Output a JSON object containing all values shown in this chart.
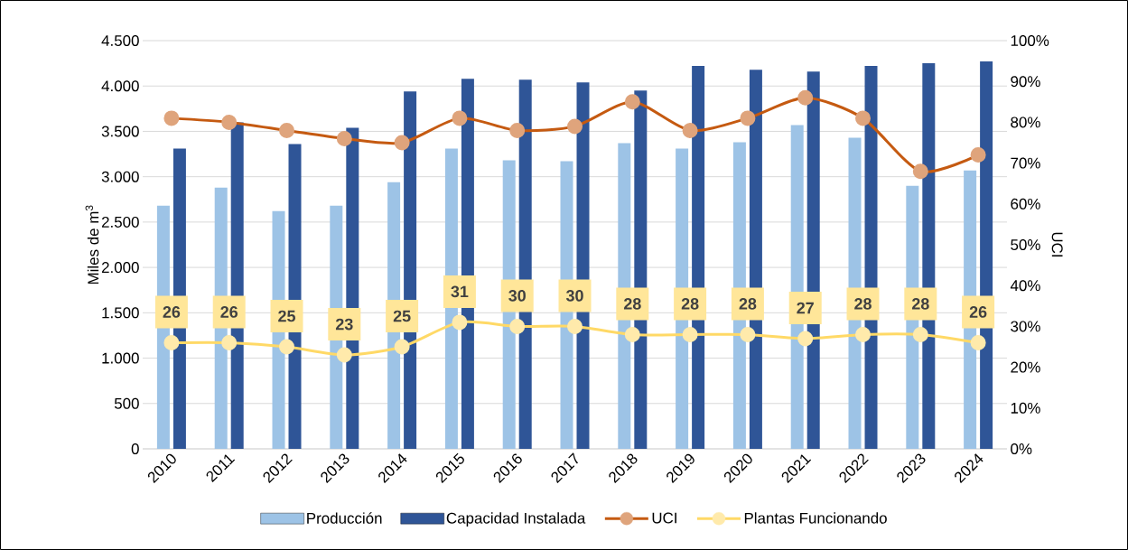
{
  "chart_data": {
    "type": "bar",
    "categories": [
      "2010",
      "2011",
      "2012",
      "2013",
      "2014",
      "2015",
      "2016",
      "2017",
      "2018",
      "2019",
      "2020",
      "2021",
      "2022",
      "2023",
      "2024"
    ],
    "ylabel": "Miles de m$^{3}$",
    "y2label": "UCI",
    "ylim": [
      0,
      4500
    ],
    "yticks": [
      0,
      500,
      {
        "value": 1000,
        "label": "1.000"
      },
      {
        "value": 1500,
        "label": "1.500"
      },
      {
        "value": 2000,
        "label": "2.000"
      },
      {
        "value": 2500,
        "label": "2.500"
      },
      {
        "value": 3000,
        "label": "3.000"
      },
      {
        "value": 3500,
        "label": "3.500"
      },
      {
        "value": 4000,
        "label": "4.000"
      },
      {
        "value": 4500,
        "label": "4.500"
      }
    ],
    "y2lim": [
      0,
      100
    ],
    "y2ticks": [
      {
        "value": 0,
        "label": "0%"
      },
      {
        "value": 10,
        "label": "10%"
      },
      {
        "value": 20,
        "label": "20%"
      },
      {
        "value": 30,
        "label": "30%"
      },
      {
        "value": 40,
        "label": "40%"
      },
      {
        "value": 50,
        "label": "50%"
      },
      {
        "value": 60,
        "label": "60%"
      },
      {
        "value": 70,
        "label": "70%"
      },
      {
        "value": 80,
        "label": "80%"
      },
      {
        "value": 90,
        "label": "90%"
      },
      {
        "value": 100,
        "label": "100%"
      }
    ],
    "grid": "y",
    "legend": "bottom",
    "marker": "circle",
    "series": [
      {
        "name": "Producción",
        "color": "#9dc3e6",
        "values": [
          2680,
          2880,
          2620,
          2680,
          2940,
          3310,
          3180,
          3170,
          3370,
          3310,
          3380,
          3570,
          3430,
          2900,
          3070
        ]
      },
      {
        "name": "Capacidad Instalada",
        "color": "#2f5597",
        "values": [
          3310,
          3600,
          3360,
          3540,
          3940,
          4080,
          4070,
          4040,
          3950,
          4220,
          4180,
          4160,
          4220,
          4250,
          4270
        ]
      },
      {
        "name": "UCI",
        "type": "line",
        "axis": "y2",
        "color": "#c55a11",
        "values": [
          81,
          80,
          78,
          76,
          75,
          81,
          78,
          79,
          85,
          78,
          81,
          86,
          81,
          68,
          72
        ]
      },
      {
        "name": "Plantas Funcionando",
        "type": "line",
        "axis": "y2",
        "color": "#ffd966",
        "values": [
          26,
          26,
          25,
          23,
          25,
          31,
          30,
          30,
          28,
          28,
          28,
          27,
          28,
          28,
          26
        ],
        "value_labels": [
          "26",
          "26",
          "25",
          "23",
          "25",
          "31",
          "30",
          "30",
          "28",
          "28",
          "28",
          "27",
          "28",
          "28",
          "26"
        ]
      }
    ]
  }
}
